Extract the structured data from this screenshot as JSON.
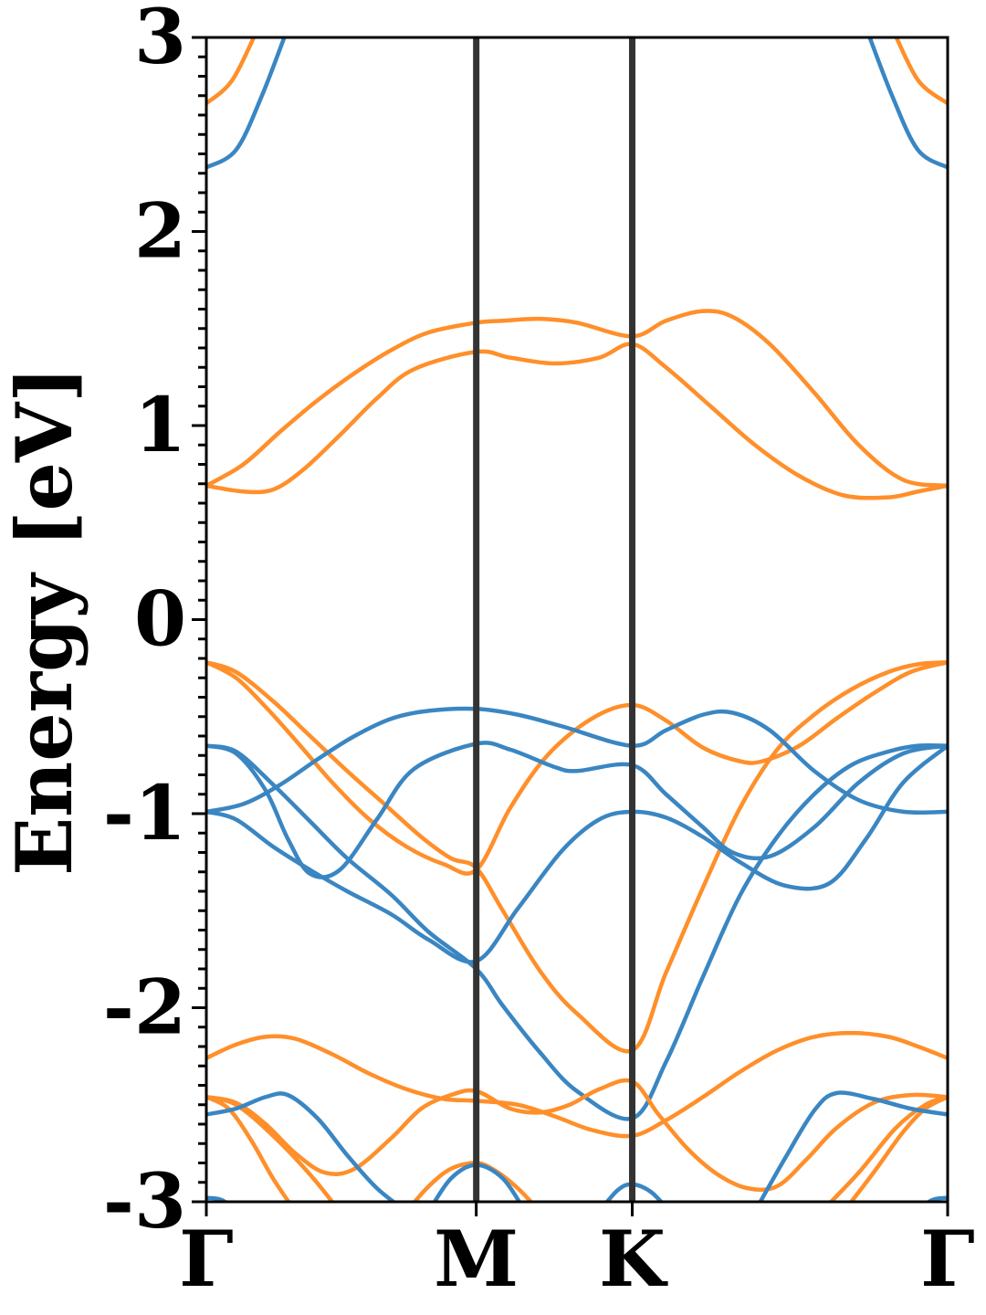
{
  "chart_data": {
    "type": "line",
    "title": "",
    "xlabel": "",
    "ylabel": "Energy [eV]",
    "ylim": [
      -3,
      3
    ],
    "xlim": [
      0,
      1
    ],
    "grid": false,
    "legend": "none",
    "yticks": [
      "-3",
      "-2",
      "-1",
      "0",
      "1",
      "2",
      "3"
    ],
    "ytick_values": [
      -3,
      -2,
      -1,
      0,
      1,
      2,
      3
    ],
    "xticks": [
      {
        "label": "Γ",
        "x": 0
      },
      {
        "label": "M",
        "x": 0.3641
      },
      {
        "label": "K",
        "x": 0.5745
      },
      {
        "label": "Γ",
        "x": 1
      }
    ],
    "vlines": [
      0.3641,
      0.5745
    ],
    "colors": {
      "blue": "#3a86c2",
      "orange": "#ff8f2a",
      "vline": "#333333",
      "axis": "#000000"
    },
    "series": [
      {
        "color": "orange",
        "x": [
          0,
          0.035,
          0.07
        ],
        "y": [
          2.66,
          2.78,
          3.05
        ]
      },
      {
        "color": "blue",
        "x": [
          0,
          0.04,
          0.075,
          0.11
        ],
        "y": [
          2.33,
          2.42,
          2.7,
          3.05
        ]
      },
      {
        "color": "orange",
        "x": [
          0.925,
          0.96,
          1
        ],
        "y": [
          3.05,
          2.78,
          2.66
        ]
      },
      {
        "color": "blue",
        "x": [
          0.89,
          0.925,
          0.96,
          1
        ],
        "y": [
          3.05,
          2.7,
          2.42,
          2.33
        ]
      },
      {
        "color": "orange",
        "x": [
          0,
          0.05,
          0.1,
          0.15,
          0.2,
          0.25,
          0.3,
          0.3641,
          0.4,
          0.45,
          0.5,
          0.5745,
          0.62,
          0.67,
          0.71,
          0.76,
          0.82,
          0.88,
          0.94,
          1
        ],
        "y": [
          0.69,
          0.8,
          0.97,
          1.13,
          1.27,
          1.39,
          1.48,
          1.53,
          1.54,
          1.55,
          1.53,
          1.46,
          1.54,
          1.59,
          1.56,
          1.42,
          1.17,
          0.9,
          0.72,
          0.69
        ]
      },
      {
        "color": "orange",
        "x": [
          0,
          0.05,
          0.09,
          0.13,
          0.18,
          0.23,
          0.28,
          0.3641,
          0.41,
          0.47,
          0.53,
          0.5745,
          0.62,
          0.68,
          0.74,
          0.8,
          0.86,
          0.92,
          0.96,
          1
        ],
        "y": [
          0.69,
          0.66,
          0.67,
          0.77,
          0.95,
          1.14,
          1.29,
          1.38,
          1.35,
          1.32,
          1.35,
          1.42,
          1.3,
          1.1,
          0.9,
          0.74,
          0.64,
          0.63,
          0.66,
          0.69
        ]
      },
      {
        "color": "orange",
        "x": [
          0,
          0.04,
          0.09,
          0.14,
          0.19,
          0.24,
          0.29,
          0.33,
          0.3641,
          0.4,
          0.45,
          0.5,
          0.5745,
          0.62,
          0.67,
          0.72,
          0.77,
          0.82,
          0.87,
          0.92,
          0.96,
          1
        ],
        "y": [
          -0.22,
          -0.27,
          -0.42,
          -0.6,
          -0.78,
          -0.95,
          -1.12,
          -1.23,
          -1.28,
          -1.5,
          -1.81,
          -2.03,
          -2.22,
          -1.82,
          -1.38,
          -0.97,
          -0.67,
          -0.49,
          -0.36,
          -0.27,
          -0.23,
          -0.22
        ]
      },
      {
        "color": "orange",
        "x": [
          0,
          0.04,
          0.08,
          0.12,
          0.17,
          0.22,
          0.27,
          0.32,
          0.3641,
          0.41,
          0.46,
          0.52,
          0.5745,
          0.62,
          0.67,
          0.72,
          0.75,
          0.8,
          0.85,
          0.9,
          0.95,
          1
        ],
        "y": [
          -0.22,
          -0.3,
          -0.45,
          -0.62,
          -0.84,
          -1.03,
          -1.17,
          -1.26,
          -1.29,
          -0.97,
          -0.7,
          -0.51,
          -0.44,
          -0.52,
          -0.66,
          -0.73,
          -0.73,
          -0.65,
          -0.51,
          -0.38,
          -0.27,
          -0.22
        ]
      },
      {
        "color": "blue",
        "x": [
          0,
          0.05,
          0.1,
          0.15,
          0.2,
          0.25,
          0.3,
          0.3641,
          0.42,
          0.48,
          0.5745,
          0.62,
          0.67,
          0.71,
          0.76,
          0.82,
          0.88,
          0.94,
          1
        ],
        "y": [
          -0.99,
          -0.95,
          -0.85,
          -0.72,
          -0.6,
          -0.51,
          -0.47,
          -0.46,
          -0.49,
          -0.55,
          -0.65,
          -0.57,
          -0.49,
          -0.48,
          -0.57,
          -0.78,
          -0.93,
          -0.99,
          -0.99
        ]
      },
      {
        "color": "blue",
        "x": [
          0,
          0.04,
          0.08,
          0.11,
          0.14,
          0.18,
          0.23,
          0.28,
          0.3641,
          0.41,
          0.47,
          0.5,
          0.5745,
          0.62,
          0.67,
          0.71,
          0.76,
          0.82,
          0.88,
          0.94,
          1
        ],
        "y": [
          -0.65,
          -0.69,
          -0.88,
          -1.13,
          -1.31,
          -1.29,
          -1.03,
          -0.77,
          -0.64,
          -0.67,
          -0.76,
          -0.78,
          -0.75,
          -0.9,
          -1.07,
          -1.2,
          -1.22,
          -1.07,
          -0.84,
          -0.69,
          -0.65
        ]
      },
      {
        "color": "blue",
        "x": [
          0,
          0.04,
          0.09,
          0.14,
          0.19,
          0.25,
          0.3,
          0.3641,
          0.42,
          0.48,
          0.53,
          0.5745,
          0.62,
          0.67,
          0.72,
          0.78,
          0.84,
          0.89,
          0.94,
          1
        ],
        "y": [
          -0.99,
          -1.03,
          -1.17,
          -1.29,
          -1.4,
          -1.52,
          -1.65,
          -1.76,
          -1.49,
          -1.19,
          -1.03,
          -0.99,
          -1.02,
          -1.12,
          -1.25,
          -1.37,
          -1.36,
          -1.13,
          -0.84,
          -0.65
        ]
      },
      {
        "color": "blue",
        "x": [
          0,
          0.04,
          0.09,
          0.14,
          0.19,
          0.25,
          0.3,
          0.3641,
          0.4,
          0.45,
          0.5,
          0.5745,
          0.62,
          0.67,
          0.72,
          0.77,
          0.82,
          0.87,
          0.92,
          0.96,
          1
        ],
        "y": [
          -0.65,
          -0.68,
          -0.85,
          -1.04,
          -1.23,
          -1.42,
          -1.61,
          -1.8,
          -1.99,
          -2.23,
          -2.43,
          -2.57,
          -2.28,
          -1.84,
          -1.42,
          -1.12,
          -0.9,
          -0.75,
          -0.68,
          -0.65,
          -0.65
        ]
      },
      {
        "color": "orange",
        "x": [
          0,
          0.04,
          0.08,
          0.12,
          0.17,
          0.22,
          0.27,
          0.32,
          0.3641,
          0.42,
          0.47,
          0.52,
          0.5745,
          0.62,
          0.67,
          0.72,
          0.77,
          0.82,
          0.87,
          0.92,
          0.96,
          1
        ],
        "y": [
          -2.26,
          -2.19,
          -2.15,
          -2.16,
          -2.24,
          -2.34,
          -2.42,
          -2.47,
          -2.48,
          -2.5,
          -2.56,
          -2.63,
          -2.66,
          -2.58,
          -2.46,
          -2.33,
          -2.22,
          -2.15,
          -2.13,
          -2.15,
          -2.2,
          -2.26
        ]
      },
      {
        "color": "orange",
        "x": [
          0,
          0.04,
          0.08,
          0.12,
          0.16,
          0.2,
          0.25,
          0.29,
          0.33,
          0.3641,
          0.41,
          0.45,
          0.49,
          0.53,
          0.5745,
          0.61,
          0.65,
          0.69,
          0.73,
          0.77,
          0.81,
          0.85,
          0.9,
          0.95,
          1
        ],
        "y": [
          -2.46,
          -2.49,
          -2.6,
          -2.75,
          -2.85,
          -2.83,
          -2.67,
          -2.52,
          -2.45,
          -2.43,
          -2.52,
          -2.54,
          -2.5,
          -2.42,
          -2.38,
          -2.55,
          -2.73,
          -2.86,
          -2.93,
          -2.92,
          -2.78,
          -2.62,
          -2.49,
          -2.45,
          -2.46
        ]
      },
      {
        "color": "orange",
        "x": [
          0,
          0.03,
          0.06,
          0.09,
          0.12
        ],
        "y": [
          -2.46,
          -2.52,
          -2.68,
          -2.88,
          -3.05
        ]
      },
      {
        "color": "orange",
        "x": [
          0,
          0.04,
          0.09,
          0.14,
          0.18
        ],
        "y": [
          -2.46,
          -2.5,
          -2.66,
          -2.86,
          -3.05
        ]
      },
      {
        "color": "orange",
        "x": [
          0.83,
          0.88,
          0.93,
          0.97,
          1
        ],
        "y": [
          -3.05,
          -2.85,
          -2.62,
          -2.5,
          -2.46
        ]
      },
      {
        "color": "orange",
        "x": [
          0.86,
          0.9,
          0.94,
          0.97,
          1
        ],
        "y": [
          -3.05,
          -2.85,
          -2.64,
          -2.52,
          -2.46
        ]
      },
      {
        "color": "orange",
        "x": [
          0.27,
          0.3,
          0.33,
          0.3641,
          0.39,
          0.42,
          0.45
        ],
        "y": [
          -3.05,
          -2.92,
          -2.83,
          -2.8,
          -2.84,
          -2.93,
          -3.05
        ]
      },
      {
        "color": "blue",
        "x": [
          0,
          0.04,
          0.08,
          0.11,
          0.15,
          0.19,
          0.23,
          0.27
        ],
        "y": [
          -2.55,
          -2.52,
          -2.46,
          -2.45,
          -2.57,
          -2.76,
          -2.93,
          -3.05
        ]
      },
      {
        "color": "blue",
        "x": [
          0.74,
          0.78,
          0.82,
          0.85,
          0.9,
          0.95,
          1
        ],
        "y": [
          -3.05,
          -2.78,
          -2.53,
          -2.44,
          -2.47,
          -2.52,
          -2.55
        ]
      },
      {
        "color": "blue",
        "x": [
          0,
          0.02,
          0.045
        ],
        "y": [
          -2.98,
          -2.99,
          -3.05
        ]
      },
      {
        "color": "blue",
        "x": [
          0.955,
          0.98,
          1
        ],
        "y": [
          -3.05,
          -2.99,
          -2.98
        ]
      },
      {
        "color": "blue",
        "x": [
          0.3,
          0.33,
          0.3641,
          0.4,
          0.43
        ],
        "y": [
          -3.05,
          -2.88,
          -2.81,
          -2.88,
          -3.05
        ]
      },
      {
        "color": "blue",
        "x": [
          0.53,
          0.555,
          0.5745,
          0.6,
          0.625
        ],
        "y": [
          -3.05,
          -2.94,
          -2.91,
          -2.95,
          -3.05
        ]
      }
    ]
  }
}
